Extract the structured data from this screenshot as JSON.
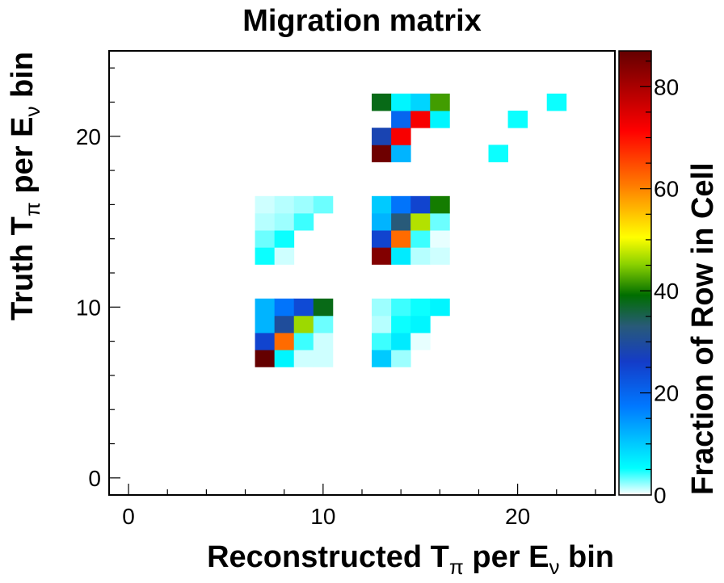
{
  "chart_data": {
    "type": "heatmap",
    "title": "Migration matrix",
    "xlabel": "Reconstructed Tπ per Eν bin",
    "ylabel": "Truth Tπ per Eν bin",
    "xlabel_parts": {
      "a": "Reconstructed T",
      "sub1": "π",
      "b": " per E",
      "sub2": "ν",
      "c": " bin"
    },
    "ylabel_parts": {
      "a": "Truth T",
      "sub1": "π",
      "b": " per E",
      "sub2": "ν",
      "c": " bin"
    },
    "xlim": [
      -1,
      25
    ],
    "ylim": [
      -1,
      25
    ],
    "xticks": [
      0,
      10,
      20
    ],
    "yticks": [
      0,
      10,
      20
    ],
    "colorbar": {
      "label": "Fraction of Row in Cell",
      "range": [
        0,
        87
      ],
      "ticks": [
        0,
        20,
        40,
        60,
        80
      ]
    },
    "grid": false,
    "cells": [
      {
        "x": 6,
        "y": 6,
        "v": 87
      },
      {
        "x": 7,
        "y": 6,
        "v": 6
      },
      {
        "x": 8,
        "y": 6,
        "v": 1
      },
      {
        "x": 9,
        "y": 6,
        "v": 1
      },
      {
        "x": 6,
        "y": 7,
        "v": 25
      },
      {
        "x": 7,
        "y": 7,
        "v": 62
      },
      {
        "x": 8,
        "y": 7,
        "v": 4
      },
      {
        "x": 9,
        "y": 7,
        "v": 1
      },
      {
        "x": 6,
        "y": 8,
        "v": 12
      },
      {
        "x": 7,
        "y": 8,
        "v": 30
      },
      {
        "x": 8,
        "y": 8,
        "v": 46
      },
      {
        "x": 9,
        "y": 8,
        "v": 3
      },
      {
        "x": 6,
        "y": 9,
        "v": 12
      },
      {
        "x": 7,
        "y": 9,
        "v": 18
      },
      {
        "x": 8,
        "y": 9,
        "v": 24
      },
      {
        "x": 9,
        "y": 9,
        "v": 38
      },
      {
        "x": 12,
        "y": 6,
        "v": 10
      },
      {
        "x": 13,
        "y": 6,
        "v": 2
      },
      {
        "x": 12,
        "y": 7,
        "v": 4
      },
      {
        "x": 13,
        "y": 7,
        "v": 7
      },
      {
        "x": 14,
        "y": 7,
        "v": 0.5
      },
      {
        "x": 12,
        "y": 8,
        "v": 1.5
      },
      {
        "x": 13,
        "y": 8,
        "v": 5
      },
      {
        "x": 14,
        "y": 8,
        "v": 6
      },
      {
        "x": 12,
        "y": 9,
        "v": 2
      },
      {
        "x": 13,
        "y": 9,
        "v": 4
      },
      {
        "x": 14,
        "y": 9,
        "v": 5
      },
      {
        "x": 15,
        "y": 9,
        "v": 6
      },
      {
        "x": 6,
        "y": 12,
        "v": 5
      },
      {
        "x": 7,
        "y": 12,
        "v": 1
      },
      {
        "x": 6,
        "y": 13,
        "v": 3
      },
      {
        "x": 7,
        "y": 13,
        "v": 5
      },
      {
        "x": 6,
        "y": 14,
        "v": 1.5
      },
      {
        "x": 7,
        "y": 14,
        "v": 2
      },
      {
        "x": 8,
        "y": 14,
        "v": 4
      },
      {
        "x": 6,
        "y": 15,
        "v": 1
      },
      {
        "x": 7,
        "y": 15,
        "v": 1.5
      },
      {
        "x": 8,
        "y": 15,
        "v": 2
      },
      {
        "x": 9,
        "y": 15,
        "v": 3
      },
      {
        "x": 12,
        "y": 12,
        "v": 84
      },
      {
        "x": 13,
        "y": 12,
        "v": 7
      },
      {
        "x": 14,
        "y": 12,
        "v": 1.5
      },
      {
        "x": 15,
        "y": 12,
        "v": 1
      },
      {
        "x": 12,
        "y": 13,
        "v": 25
      },
      {
        "x": 13,
        "y": 13,
        "v": 62
      },
      {
        "x": 14,
        "y": 13,
        "v": 4
      },
      {
        "x": 15,
        "y": 13,
        "v": 0.5
      },
      {
        "x": 12,
        "y": 14,
        "v": 12
      },
      {
        "x": 13,
        "y": 14,
        "v": 33
      },
      {
        "x": 14,
        "y": 14,
        "v": 47
      },
      {
        "x": 15,
        "y": 14,
        "v": 3
      },
      {
        "x": 12,
        "y": 15,
        "v": 10
      },
      {
        "x": 13,
        "y": 15,
        "v": 18
      },
      {
        "x": 14,
        "y": 15,
        "v": 25
      },
      {
        "x": 15,
        "y": 15,
        "v": 40
      },
      {
        "x": 12,
        "y": 18,
        "v": 86
      },
      {
        "x": 13,
        "y": 18,
        "v": 12
      },
      {
        "x": 12,
        "y": 19,
        "v": 28
      },
      {
        "x": 13,
        "y": 19,
        "v": 72
      },
      {
        "x": 13,
        "y": 20,
        "v": 20
      },
      {
        "x": 14,
        "y": 20,
        "v": 72
      },
      {
        "x": 15,
        "y": 20,
        "v": 6
      },
      {
        "x": 12,
        "y": 21,
        "v": 38
      },
      {
        "x": 13,
        "y": 21,
        "v": 6
      },
      {
        "x": 14,
        "y": 21,
        "v": 9
      },
      {
        "x": 15,
        "y": 21,
        "v": 42
      },
      {
        "x": 18,
        "y": 18,
        "v": 5
      },
      {
        "x": 19,
        "y": 20,
        "v": 5
      },
      {
        "x": 21,
        "y": 21,
        "v": 5
      }
    ]
  }
}
